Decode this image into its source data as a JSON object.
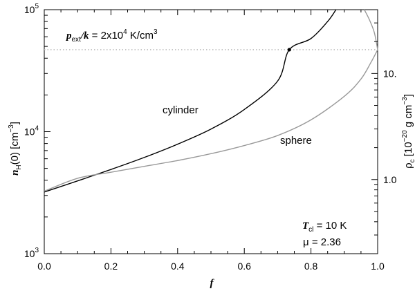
{
  "chart_data": {
    "type": "line",
    "x_axis": {
      "label": "f",
      "range": [
        0.0,
        1.0
      ],
      "ticks": [
        0.0,
        0.2,
        0.4,
        0.6,
        0.8,
        1.0
      ],
      "tick_labels": [
        "0.0",
        "0.2",
        "0.4",
        "0.6",
        "0.8",
        "1.0"
      ]
    },
    "y_axis_left": {
      "label_main": "n",
      "label_sub": "H",
      "label_rest": "(0) [cm",
      "label_exp": "−3",
      "label_close": "]",
      "scale": "log",
      "range": [
        1000,
        100000
      ],
      "major_ticks": [
        {
          "value": 1000,
          "base": "10",
          "exp": "3"
        },
        {
          "value": 10000,
          "base": "10",
          "exp": "4"
        },
        {
          "value": 100000,
          "base": "10",
          "exp": "5"
        }
      ]
    },
    "y_axis_right": {
      "label_main": "ρ",
      "label_sub": "c",
      "label_rest": " [10",
      "label_exp": "−20",
      "label_close": " g cm",
      "label_exp2": "−3",
      "label_end": "]",
      "scale": "log",
      "range": [
        0.2,
        40
      ],
      "tick_labels": [
        {
          "value": 1.0,
          "text": "1.0"
        },
        {
          "value": 10.0,
          "text": "10."
        }
      ]
    },
    "series": [
      {
        "name": "cylinder",
        "color": "#000000",
        "x": [
          0.0,
          0.1,
          0.2,
          0.3,
          0.4,
          0.5,
          0.6,
          0.7,
          0.735,
          0.8,
          0.85,
          0.875
        ],
        "y": [
          3200,
          3950,
          4900,
          6150,
          7900,
          10500,
          15200,
          26000,
          47000,
          58000,
          80000,
          100000
        ]
      },
      {
        "name": "sphere",
        "color": "#999999",
        "x": [
          0.0,
          0.1,
          0.2,
          0.3,
          0.4,
          0.5,
          0.6,
          0.7,
          0.8,
          0.9,
          0.95,
          0.98,
          1.0
        ],
        "y": [
          3250,
          4150,
          4650,
          5200,
          5800,
          6600,
          7700,
          9300,
          12500,
          19500,
          27000,
          37000,
          47000
        ]
      },
      {
        "name": "sphere-upper",
        "color": "#999999",
        "x": [
          0.96,
          0.975,
          0.99,
          1.0
        ],
        "y": [
          100000,
          83000,
          65000,
          47000
        ]
      }
    ],
    "reference_line": {
      "y": 47000,
      "style": "dotted",
      "color": "#bbbbbb"
    },
    "marker_point": {
      "x": 0.735,
      "y": 47000
    },
    "annotations": {
      "pressure_label": {
        "var": "p",
        "sub": "ext",
        "slash": "/",
        "k": "k",
        "rest": " = 2x10",
        "exp": "4",
        "unit": " K/cm",
        "exp2": "3"
      },
      "cylinder_label": "cylinder",
      "sphere_label": "sphere",
      "tcl_label": {
        "var": "T",
        "sub": "cl",
        "rest": " = 10 K"
      },
      "mu_label": {
        "var": "μ",
        "rest": "  = 2.36"
      }
    }
  }
}
